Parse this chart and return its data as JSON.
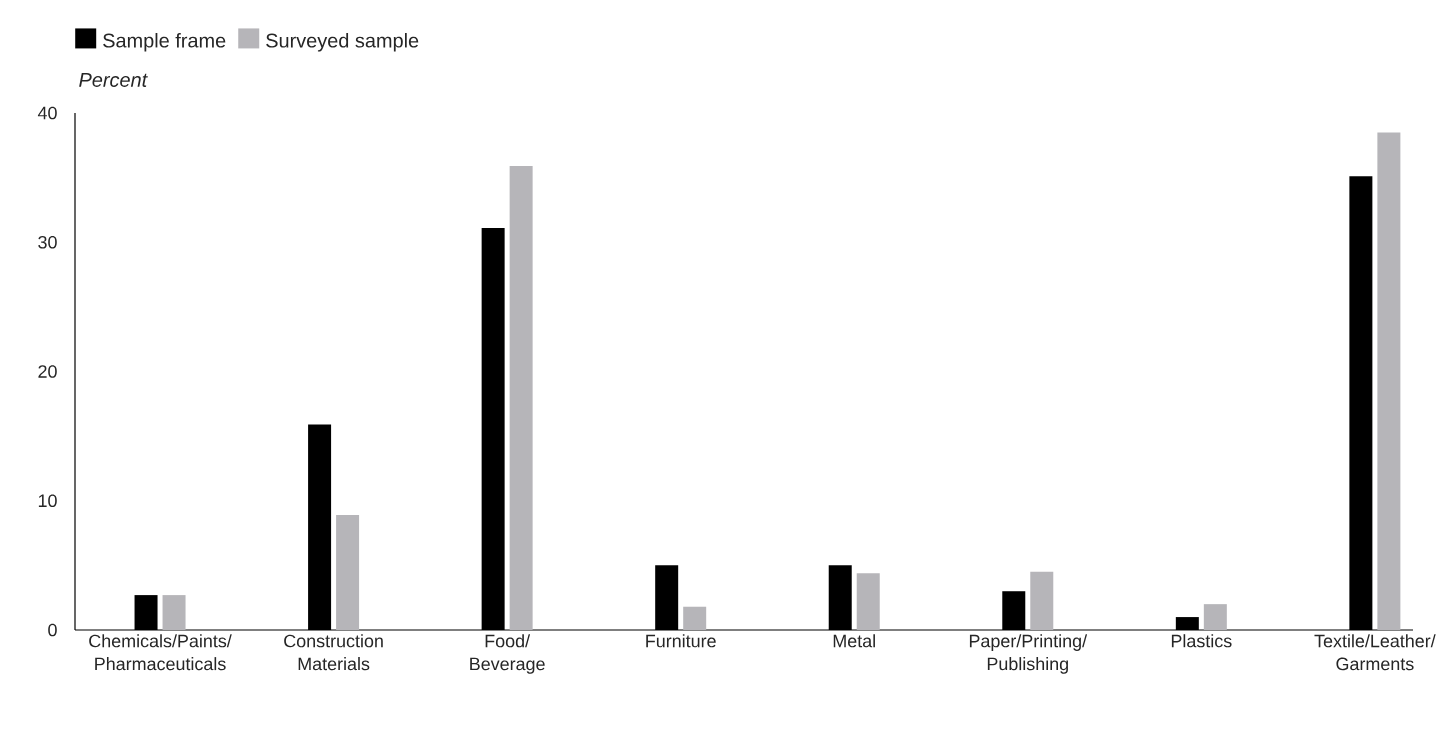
{
  "chart_data": {
    "type": "bar",
    "ylabel": "Percent",
    "categories": [
      "Chemicals/Paints/ Pharmaceuticals",
      "Construction Materials",
      "Food/ Beverage",
      "Furniture",
      "Metal",
      "Paper/Printing/ Publishing",
      "Plastics",
      "Textile/Leather/ Garments"
    ],
    "series": [
      {
        "name": "Sample frame",
        "color": "#000000",
        "values": [
          2.7,
          15.9,
          31.1,
          5.0,
          5.0,
          3.0,
          1.0,
          35.1
        ]
      },
      {
        "name": "Surveyed sample",
        "color": "#b6b5b9",
        "values": [
          2.7,
          8.9,
          35.9,
          1.8,
          4.4,
          4.5,
          2.0,
          38.5
        ]
      }
    ],
    "ylim": [
      0,
      40
    ],
    "yticks": [
      0,
      10,
      20,
      30,
      40
    ],
    "legend": "top left"
  }
}
